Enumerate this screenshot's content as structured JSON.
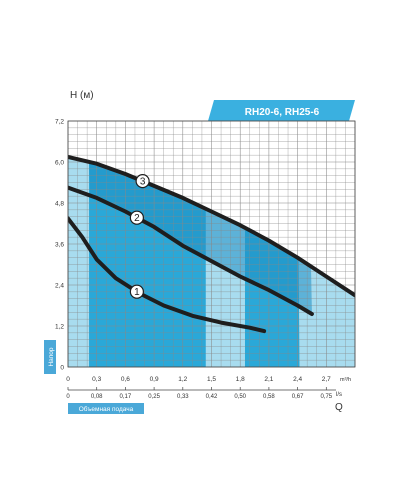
{
  "chart_data": {
    "type": "line",
    "title": "RH20-6, RH25-6",
    "ylabel": "H (м)",
    "y_side_label": "Напор",
    "x_unit": "m³/h",
    "x2_unit": "l/s",
    "x2_axis_letter": "Q",
    "x2_side_label": "Объемная подача",
    "xlim": [
      0,
      3.0
    ],
    "ylim": [
      0,
      7.2
    ],
    "y_ticks": [
      "0",
      "1,2",
      "2,4",
      "3,6",
      "4,8",
      "6,0",
      "7,2"
    ],
    "x_ticks": [
      "0",
      "0,3",
      "0,6",
      "0,9",
      "1,2",
      "1,5",
      "1,8",
      "2,1",
      "2,4",
      "2,7"
    ],
    "x2_ticks": [
      "0",
      "0,08",
      "0,17",
      "0,25",
      "0,33",
      "0,42",
      "0,50",
      "0,58",
      "0,67",
      "0,75"
    ],
    "grid": true,
    "series": [
      {
        "name": "1",
        "x": [
          0,
          0.15,
          0.3,
          0.5,
          0.75,
          1.0,
          1.3,
          1.6,
          1.9,
          2.05
        ],
        "y": [
          4.35,
          3.8,
          3.15,
          2.6,
          2.15,
          1.8,
          1.5,
          1.3,
          1.15,
          1.05
        ]
      },
      {
        "name": "2",
        "x": [
          0,
          0.3,
          0.6,
          0.9,
          1.2,
          1.5,
          1.8,
          2.1,
          2.4,
          2.55
        ],
        "y": [
          5.25,
          4.95,
          4.55,
          4.1,
          3.55,
          3.1,
          2.65,
          2.25,
          1.8,
          1.55
        ]
      },
      {
        "name": "3",
        "x": [
          0,
          0.3,
          0.6,
          0.9,
          1.2,
          1.5,
          1.8,
          2.1,
          2.4,
          2.7,
          3.0
        ],
        "y": [
          6.15,
          5.95,
          5.65,
          5.3,
          4.95,
          4.55,
          4.15,
          3.7,
          3.2,
          2.65,
          2.1
        ]
      }
    ],
    "shaded_bands": [
      {
        "x_from": 0.22,
        "x_to": 1.44,
        "color": "#2aa8d8"
      },
      {
        "x_from": 1.85,
        "x_to": 2.42,
        "color": "#2aa8d8"
      }
    ],
    "colors": {
      "curve": "#1e1e1e",
      "band_dark": "#2aa8d8",
      "band_light": "#a8dcef",
      "grid": "#888888",
      "banner": "#3ab0e0",
      "axis_label_bg": "#4aa8d8"
    }
  }
}
